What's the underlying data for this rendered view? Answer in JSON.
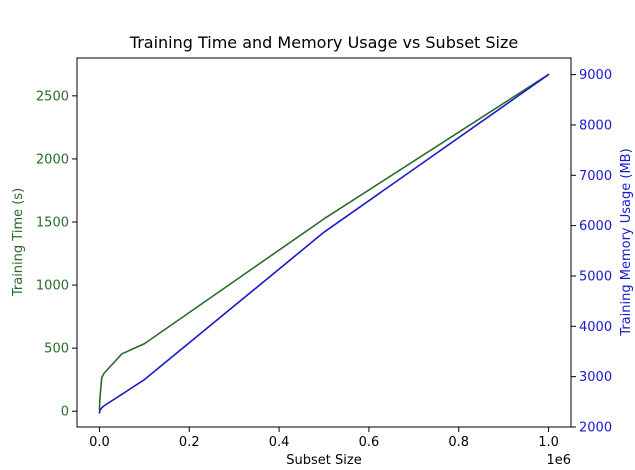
{
  "chart_data": {
    "type": "line",
    "title": "Training Time and Memory Usage vs Subset Size",
    "xlabel": "Subset Size",
    "x_offset_label": "1e6",
    "ylabel_left": "Training Time (s)",
    "ylabel_right": "Training Memory Usage (MB)",
    "xlim": [
      -0.05,
      1.05
    ],
    "ylim_left": [
      -125,
      2800
    ],
    "ylim_right": [
      2000,
      9330
    ],
    "x_ticks": [
      0.0,
      0.2,
      0.4,
      0.6,
      0.8,
      1.0
    ],
    "x_tick_labels": [
      "0.0",
      "0.2",
      "0.4",
      "0.6",
      "0.8",
      "1.0"
    ],
    "y_left_ticks": [
      0,
      500,
      1000,
      1500,
      2000,
      2500
    ],
    "y_left_tick_labels": [
      "0",
      "500",
      "1000",
      "1500",
      "2000",
      "2500"
    ],
    "y_right_ticks": [
      2000,
      3000,
      4000,
      5000,
      6000,
      7000,
      8000,
      9000
    ],
    "y_right_tick_labels": [
      "2000",
      "3000",
      "4000",
      "5000",
      "6000",
      "7000",
      "8000",
      "9000"
    ],
    "grid": false,
    "legend": "none",
    "series": [
      {
        "axis": "left",
        "color": "#2a6b2a",
        "x": [
          0.0,
          0.001,
          0.005,
          0.01,
          0.05,
          0.1,
          0.5,
          1.0
        ],
        "values": [
          15,
          100,
          265,
          300,
          455,
          535,
          1525,
          2670
        ]
      },
      {
        "axis": "right",
        "color": "#1a1acc",
        "x": [
          0.0,
          0.001,
          0.005,
          0.01,
          0.05,
          0.1,
          0.5,
          1.0
        ],
        "values": [
          2280,
          2330,
          2380,
          2420,
          2650,
          2940,
          5870,
          9000
        ]
      }
    ],
    "colors": {
      "left_axis": "#2a6b2a",
      "right_axis": "#1a1acc",
      "frame": "#000000"
    }
  }
}
